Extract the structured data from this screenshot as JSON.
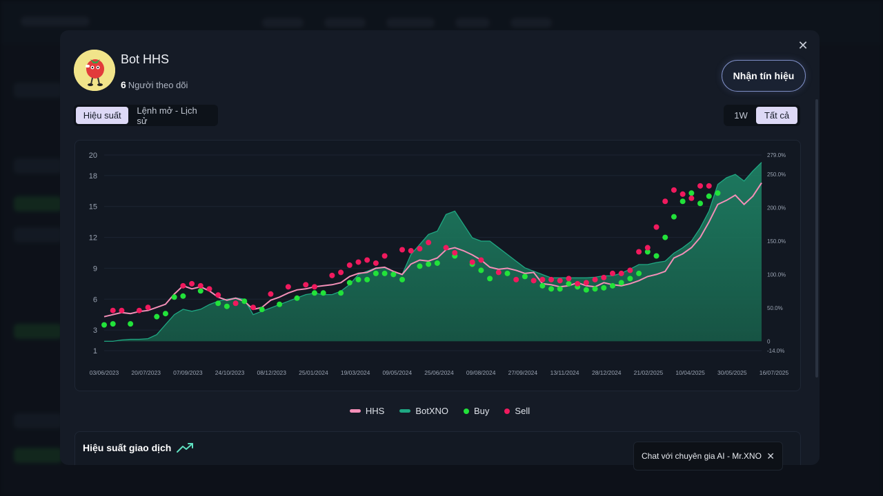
{
  "bot": {
    "name": "Bot HHS",
    "followers_count": "6",
    "followers_label": "Người theo dõi"
  },
  "actions": {
    "signal_button": "Nhận tín hiệu"
  },
  "tabs": [
    {
      "label": "Hiệu suất",
      "active": true
    },
    {
      "label": "Lệnh mở - Lịch sử",
      "active": false
    }
  ],
  "ranges": [
    {
      "label": "1W",
      "active": false
    },
    {
      "label": "Tất cả",
      "active": true
    }
  ],
  "legend": [
    {
      "label": "HHS",
      "color": "#f48fb8",
      "shape": "bar"
    },
    {
      "label": "BotXNO",
      "color": "#1fa883",
      "shape": "bar"
    },
    {
      "label": "Buy",
      "color": "#22e23a",
      "shape": "dot"
    },
    {
      "label": "Sell",
      "color": "#f01a5e",
      "shape": "dot"
    }
  ],
  "perf_section": {
    "title": "Hiệu suất giao dịch",
    "icon": "trending-up-icon"
  },
  "chat_toast": {
    "text": "Chat với chuyên gia AI - Mr.XNO"
  },
  "chart_data": {
    "type": "line",
    "x_ticks": [
      "03/06/2023",
      "20/07/2023",
      "07/09/2023",
      "24/10/2023",
      "08/12/2023",
      "25/01/2024",
      "19/03/2024",
      "09/05/2024",
      "25/06/2024",
      "09/08/2024",
      "27/09/2024",
      "13/11/2024",
      "28/12/2024",
      "21/02/2025",
      "10/04/2025",
      "30/05/2025",
      "16/07/2025"
    ],
    "y_left_ticks": [
      "20",
      "18",
      "15",
      "12",
      "9",
      "6",
      "3",
      "1"
    ],
    "y_left_values": [
      20,
      18,
      15,
      12,
      9,
      6,
      3,
      1
    ],
    "y_right_ticks": [
      "279.0%",
      "250.0%",
      "200.0%",
      "150.0%",
      "100.0%",
      "50.0%",
      "0",
      "-14.0%"
    ],
    "y_right_values": [
      279,
      250,
      200,
      150,
      100,
      50,
      0,
      -14
    ],
    "ylim_left": [
      1,
      20
    ],
    "ylim_right": [
      -14,
      279
    ],
    "grid": true,
    "series": [
      {
        "name": "HHS",
        "axis": "left",
        "color": "#f48fb8",
        "values": [
          4.3,
          4.5,
          4.7,
          4.6,
          4.8,
          4.9,
          5.2,
          5.5,
          6.5,
          7.3,
          7.0,
          7.2,
          6.8,
          6.2,
          5.9,
          6.1,
          5.8,
          5.0,
          5.2,
          5.9,
          6.2,
          6.6,
          6.9,
          7.0,
          7.2,
          7.3,
          7.4,
          7.6,
          8.2,
          8.5,
          8.6,
          9.0,
          9.1,
          8.7,
          8.4,
          9.4,
          9.8,
          9.7,
          10.0,
          10.8,
          11.0,
          10.7,
          10.3,
          9.8,
          9.1,
          8.9,
          9.0,
          8.8,
          8.5,
          8.6,
          7.5,
          7.4,
          7.2,
          7.3,
          7.6,
          7.3,
          7.2,
          7.6,
          7.4,
          7.3,
          7.5,
          7.8,
          8.2,
          8.4,
          8.7,
          10.0,
          10.4,
          11.0,
          12.0,
          13.5,
          15.2,
          15.6,
          16.1,
          15.2,
          16.0,
          17.3
        ]
      },
      {
        "name": "BotXNO",
        "axis": "right",
        "color": "#1fa883",
        "values": [
          0,
          0,
          2,
          3,
          3,
          4,
          10,
          25,
          40,
          48,
          45,
          48,
          55,
          60,
          63,
          65,
          63,
          40,
          45,
          50,
          55,
          60,
          65,
          70,
          72,
          70,
          70,
          75,
          85,
          100,
          105,
          110,
          110,
          105,
          100,
          130,
          145,
          160,
          165,
          190,
          195,
          175,
          155,
          150,
          150,
          140,
          130,
          120,
          110,
          105,
          100,
          95,
          95,
          95,
          95,
          95,
          96,
          98,
          98,
          102,
          108,
          115,
          115,
          118,
          120,
          132,
          140,
          150,
          170,
          195,
          235,
          245,
          250,
          240,
          255,
          268
        ]
      }
    ],
    "trades": {
      "buy": [
        [
          0,
          3.5
        ],
        [
          1,
          3.6
        ],
        [
          3,
          3.6
        ],
        [
          6,
          4.3
        ],
        [
          7,
          4.6
        ],
        [
          8,
          6.2
        ],
        [
          9,
          6.3
        ],
        [
          11,
          6.8
        ],
        [
          13,
          5.6
        ],
        [
          14,
          5.3
        ],
        [
          16,
          5.8
        ],
        [
          18,
          5.0
        ],
        [
          20,
          5.5
        ],
        [
          22,
          6.1
        ],
        [
          24,
          6.6
        ],
        [
          25,
          6.6
        ],
        [
          27,
          6.6
        ],
        [
          28,
          7.6
        ],
        [
          29,
          7.9
        ],
        [
          30,
          7.9
        ],
        [
          31,
          8.5
        ],
        [
          32,
          8.5
        ],
        [
          33,
          8.4
        ],
        [
          34,
          7.9
        ],
        [
          36,
          9.2
        ],
        [
          37,
          9.4
        ],
        [
          38,
          9.5
        ],
        [
          40,
          10.2
        ],
        [
          42,
          9.4
        ],
        [
          43,
          8.8
        ],
        [
          44,
          8.0
        ],
        [
          46,
          8.5
        ],
        [
          48,
          8.2
        ],
        [
          50,
          7.3
        ],
        [
          51,
          7.0
        ],
        [
          52,
          7.0
        ],
        [
          53,
          7.5
        ],
        [
          54,
          7.2
        ],
        [
          55,
          6.9
        ],
        [
          56,
          7.0
        ],
        [
          57,
          7.1
        ],
        [
          58,
          7.3
        ],
        [
          59,
          7.6
        ],
        [
          60,
          8.0
        ],
        [
          61,
          8.5
        ],
        [
          62,
          10.6
        ],
        [
          63,
          10.2
        ],
        [
          64,
          12.0
        ],
        [
          65,
          14.0
        ],
        [
          66,
          15.5
        ],
        [
          67,
          16.3
        ],
        [
          68,
          15.3
        ],
        [
          69,
          16.0
        ],
        [
          70,
          16.3
        ]
      ],
      "sell": [
        [
          1,
          4.9
        ],
        [
          2,
          4.9
        ],
        [
          4,
          4.9
        ],
        [
          5,
          5.2
        ],
        [
          9,
          7.3
        ],
        [
          10,
          7.5
        ],
        [
          11,
          7.3
        ],
        [
          12,
          7.0
        ],
        [
          13,
          6.4
        ],
        [
          15,
          5.6
        ],
        [
          17,
          5.2
        ],
        [
          19,
          6.5
        ],
        [
          21,
          7.2
        ],
        [
          23,
          7.4
        ],
        [
          24,
          7.2
        ],
        [
          26,
          8.3
        ],
        [
          27,
          8.6
        ],
        [
          28,
          9.3
        ],
        [
          29,
          9.6
        ],
        [
          30,
          9.8
        ],
        [
          31,
          9.5
        ],
        [
          32,
          10.2
        ],
        [
          34,
          10.8
        ],
        [
          35,
          10.7
        ],
        [
          36,
          10.9
        ],
        [
          37,
          11.5
        ],
        [
          39,
          11.0
        ],
        [
          40,
          10.5
        ],
        [
          42,
          9.6
        ],
        [
          43,
          9.8
        ],
        [
          45,
          8.6
        ],
        [
          47,
          7.9
        ],
        [
          49,
          7.8
        ],
        [
          50,
          7.9
        ],
        [
          51,
          7.9
        ],
        [
          52,
          7.8
        ],
        [
          53,
          8.0
        ],
        [
          54,
          7.5
        ],
        [
          55,
          7.6
        ],
        [
          56,
          7.9
        ],
        [
          57,
          8.1
        ],
        [
          58,
          8.5
        ],
        [
          59,
          8.5
        ],
        [
          60,
          8.8
        ],
        [
          61,
          10.6
        ],
        [
          62,
          11.0
        ],
        [
          63,
          13.0
        ],
        [
          64,
          15.5
        ],
        [
          65,
          16.6
        ],
        [
          66,
          16.2
        ],
        [
          67,
          15.8
        ],
        [
          68,
          17.0
        ],
        [
          69,
          17.0
        ]
      ]
    }
  }
}
